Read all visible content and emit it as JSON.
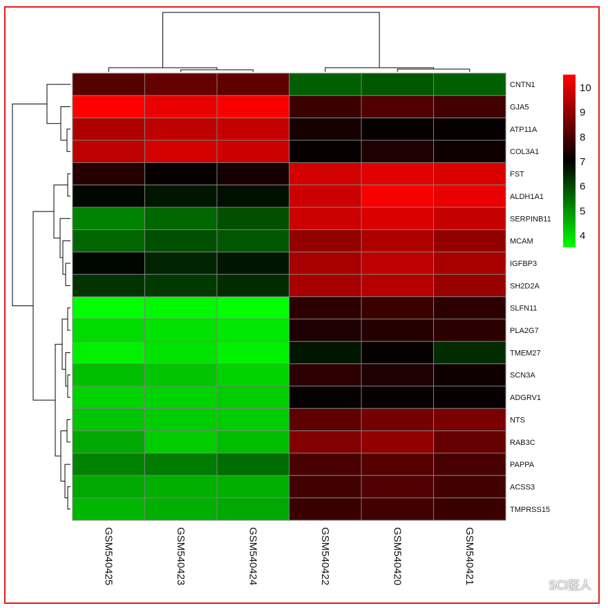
{
  "chart_data": {
    "type": "heatmap",
    "columns": [
      "GSM540425",
      "GSM540423",
      "GSM540424",
      "GSM540422",
      "GSM540420",
      "GSM540421"
    ],
    "rows": [
      "CNTN1",
      "GJA5",
      "ATP11A",
      "COL3A1",
      "FST",
      "ALDH1A1",
      "SERPINB11",
      "MCAM",
      "IGFBP3",
      "SH2D2A",
      "SLFN11",
      "PLA2G7",
      "TMEM27",
      "SCN3A",
      "ADGRV1",
      "NTS",
      "RAB3C",
      "PAPPA",
      "ACSS3",
      "TMPRSS15"
    ],
    "values": [
      [
        8.2,
        8.4,
        8.3,
        5.7,
        5.8,
        5.7
      ],
      [
        10.5,
        10.2,
        10.4,
        7.8,
        8.1,
        7.9
      ],
      [
        9.4,
        9.6,
        9.7,
        7.3,
        7.1,
        7.1
      ],
      [
        9.6,
        9.9,
        9.8,
        7.1,
        7.4,
        7.2
      ],
      [
        7.5,
        7.1,
        7.3,
        9.9,
        10.1,
        10.0
      ],
      [
        6.9,
        6.7,
        6.8,
        9.8,
        10.4,
        10.2
      ],
      [
        5.2,
        5.6,
        5.9,
        9.8,
        10.0,
        9.7
      ],
      [
        5.6,
        5.9,
        5.8,
        9.0,
        9.4,
        9.0
      ],
      [
        6.9,
        6.5,
        6.7,
        9.3,
        9.6,
        9.3
      ],
      [
        6.3,
        6.2,
        6.4,
        9.3,
        9.5,
        9.1
      ],
      [
        3.5,
        3.6,
        3.5,
        7.6,
        7.8,
        7.6
      ],
      [
        4.0,
        3.9,
        3.8,
        7.4,
        7.5,
        7.6
      ],
      [
        3.7,
        3.9,
        3.7,
        6.7,
        7.1,
        6.4
      ],
      [
        4.4,
        4.3,
        4.1,
        7.6,
        7.4,
        7.2
      ],
      [
        4.1,
        4.1,
        4.2,
        7.1,
        7.1,
        7.1
      ],
      [
        4.3,
        4.2,
        4.2,
        8.3,
        8.6,
        8.7
      ],
      [
        4.7,
        4.2,
        4.4,
        8.8,
        9.0,
        8.4
      ],
      [
        5.2,
        5.3,
        5.5,
        8.0,
        8.2,
        8.0
      ],
      [
        4.7,
        4.6,
        4.6,
        7.9,
        8.1,
        7.9
      ],
      [
        4.5,
        4.6,
        4.7,
        7.8,
        7.9,
        7.8
      ]
    ],
    "color_scale": {
      "min": 3.5,
      "mid": 7,
      "max": 10.5,
      "low_color": "#00ff00",
      "mid_color": "#000000",
      "high_color": "#ff0000"
    },
    "legend": {
      "ticks": [
        "10",
        "9",
        "8",
        "7",
        "6",
        "5",
        "4"
      ],
      "tick_values": [
        10,
        9,
        8,
        7,
        6,
        5,
        4
      ],
      "placement": "top-right"
    },
    "dendrograms": {
      "columns": "top",
      "rows": "left"
    },
    "grid": true,
    "grid_color": "#808080",
    "frame_color": "#e01b1b"
  },
  "watermark": {
    "text": "SCI狂人",
    "icon": "wechat-icon"
  }
}
